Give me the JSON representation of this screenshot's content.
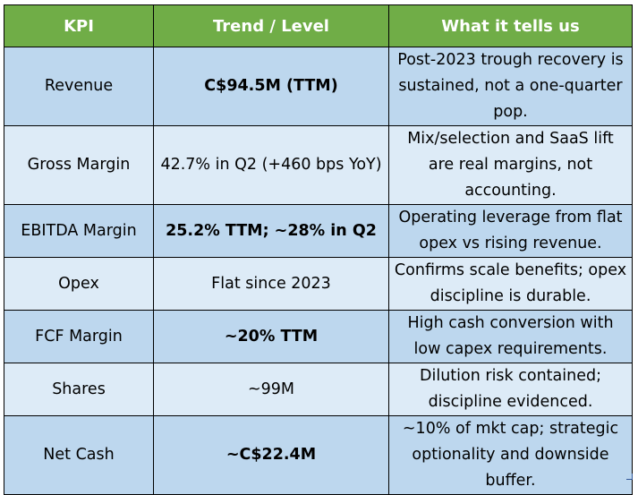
{
  "header": {
    "col1": "KPI",
    "col2": "Trend / Level",
    "col3": "What it tells us"
  },
  "rows": [
    {
      "kpi": "Revenue",
      "level": "C$94.5M (TTM)",
      "insight": "Post-2023 trough recovery is sustained, not a one-quarter pop."
    },
    {
      "kpi": "Gross Margin",
      "level": "42.7% in Q2 (+460 bps YoY)",
      "insight": "Mix/selection and SaaS lift are real margins, not accounting."
    },
    {
      "kpi": "EBITDA Margin",
      "level": "25.2% TTM; ~28% in Q2",
      "insight": "Operating leverage from flat opex vs rising revenue."
    },
    {
      "kpi": "Opex",
      "level": "Flat since 2023",
      "insight": "Confirms scale benefits; opex discipline is durable."
    },
    {
      "kpi": "FCF Margin",
      "level": "~20% TTM",
      "insight": "High cash conversion with low capex requirements."
    },
    {
      "kpi": "Shares",
      "level": "~99M",
      "insight": "Dilution risk contained; discipline evidenced."
    },
    {
      "kpi": "Net Cash",
      "level": "~C$22.4M",
      "insight": "~10% of mkt cap; strategic optionality and downside buffer."
    }
  ]
}
